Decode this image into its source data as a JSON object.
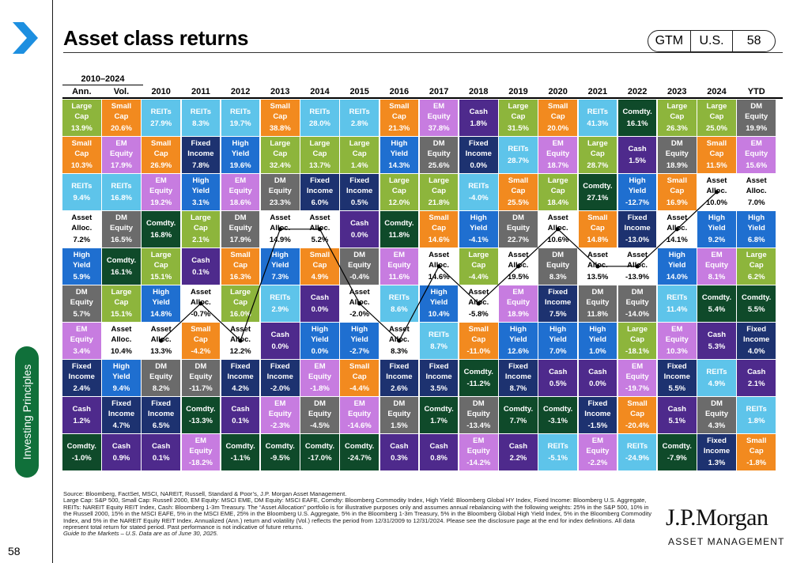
{
  "title": "Asset class returns",
  "badge": {
    "gtm": "GTM",
    "region": "U.S.",
    "page": "58"
  },
  "sidebar": {
    "label": "Investing Principles",
    "page_number": "58"
  },
  "colors": {
    "Large Cap": "#8db53c",
    "Small Cap": "#f28a1f",
    "EM Equity": "#c77ce0",
    "REITs": "#5ec4ea",
    "Asset Alloc.": "#ffffff",
    "High Yield": "#1f6fd0",
    "DM Equity": "#6b6b6b",
    "Fixed Income": "#1d3270",
    "Cash": "#4e2a8c",
    "Comdty.": "#0f4a2a"
  },
  "chart_data": {
    "type": "table",
    "title": "Asset class returns",
    "range_label": "2010–2024",
    "columns": [
      "Ann.",
      "Vol.",
      "2010",
      "2011",
      "2012",
      "2013",
      "2014",
      "2015",
      "2016",
      "2017",
      "2018",
      "2019",
      "2020",
      "2021",
      "2022",
      "2023",
      "2024",
      "YTD"
    ],
    "rows": [
      [
        [
          "Large Cap",
          "13.9%"
        ],
        [
          "Small Cap",
          "20.6%"
        ],
        [
          "REITs",
          "27.9%"
        ],
        [
          "REITs",
          "8.3%"
        ],
        [
          "REITs",
          "19.7%"
        ],
        [
          "Small Cap",
          "38.8%"
        ],
        [
          "REITs",
          "28.0%"
        ],
        [
          "REITs",
          "2.8%"
        ],
        [
          "Small Cap",
          "21.3%"
        ],
        [
          "EM Equity",
          "37.8%"
        ],
        [
          "Cash",
          "1.8%"
        ],
        [
          "Large Cap",
          "31.5%"
        ],
        [
          "Small Cap",
          "20.0%"
        ],
        [
          "REITs",
          "41.3%"
        ],
        [
          "Comdty.",
          "16.1%"
        ],
        [
          "Large Cap",
          "26.3%"
        ],
        [
          "Large Cap",
          "25.0%"
        ],
        [
          "DM Equity",
          "19.9%"
        ]
      ],
      [
        [
          "Small Cap",
          "10.3%"
        ],
        [
          "EM Equity",
          "17.9%"
        ],
        [
          "Small Cap",
          "26.9%"
        ],
        [
          "Fixed Income",
          "7.8%"
        ],
        [
          "High Yield",
          "19.6%"
        ],
        [
          "Large Cap",
          "32.4%"
        ],
        [
          "Large Cap",
          "13.7%"
        ],
        [
          "Large Cap",
          "1.4%"
        ],
        [
          "High Yield",
          "14.3%"
        ],
        [
          "DM Equity",
          "25.6%"
        ],
        [
          "Fixed Income",
          "0.0%"
        ],
        [
          "REITs",
          "28.7%"
        ],
        [
          "EM Equity",
          "18.7%"
        ],
        [
          "Large Cap",
          "28.7%"
        ],
        [
          "Cash",
          "1.5%"
        ],
        [
          "DM Equity",
          "18.9%"
        ],
        [
          "Small Cap",
          "11.5%"
        ],
        [
          "EM Equity",
          "15.6%"
        ]
      ],
      [
        [
          "REITs",
          "9.4%"
        ],
        [
          "REITs",
          "16.8%"
        ],
        [
          "EM Equity",
          "19.2%"
        ],
        [
          "High Yield",
          "3.1%"
        ],
        [
          "EM Equity",
          "18.6%"
        ],
        [
          "DM Equity",
          "23.3%"
        ],
        [
          "Fixed Income",
          "6.0%"
        ],
        [
          "Fixed Income",
          "0.5%"
        ],
        [
          "Large Cap",
          "12.0%"
        ],
        [
          "Large Cap",
          "21.8%"
        ],
        [
          "REITs",
          "-4.0%"
        ],
        [
          "Small Cap",
          "25.5%"
        ],
        [
          "Large Cap",
          "18.4%"
        ],
        [
          "Comdty.",
          "27.1%"
        ],
        [
          "High Yield",
          "-12.7%"
        ],
        [
          "Small Cap",
          "16.9%"
        ],
        [
          "Asset Alloc.",
          "10.0%"
        ],
        [
          "Asset Alloc.",
          "7.0%"
        ]
      ],
      [
        [
          "Asset Alloc.",
          "7.2%"
        ],
        [
          "DM Equity",
          "16.5%"
        ],
        [
          "Comdty.",
          "16.8%"
        ],
        [
          "Large Cap",
          "2.1%"
        ],
        [
          "DM Equity",
          "17.9%"
        ],
        [
          "Asset Alloc.",
          "14.9%"
        ],
        [
          "Asset Alloc.",
          "5.2%"
        ],
        [
          "Cash",
          "0.0%"
        ],
        [
          "Comdty.",
          "11.8%"
        ],
        [
          "Small Cap",
          "14.6%"
        ],
        [
          "High Yield",
          "-4.1%"
        ],
        [
          "DM Equity",
          "22.7%"
        ],
        [
          "Asset Alloc.",
          "10.6%"
        ],
        [
          "Small Cap",
          "14.8%"
        ],
        [
          "Fixed Income",
          "-13.0%"
        ],
        [
          "Asset Alloc.",
          "14.1%"
        ],
        [
          "High Yield",
          "9.2%"
        ],
        [
          "High Yield",
          "6.8%"
        ]
      ],
      [
        [
          "High Yield",
          "5.9%"
        ],
        [
          "Comdty.",
          "16.1%"
        ],
        [
          "Large Cap",
          "15.1%"
        ],
        [
          "Cash",
          "0.1%"
        ],
        [
          "Small Cap",
          "16.3%"
        ],
        [
          "High Yield",
          "7.3%"
        ],
        [
          "Small Cap",
          "4.9%"
        ],
        [
          "DM Equity",
          "-0.4%"
        ],
        [
          "EM Equity",
          "11.6%"
        ],
        [
          "Asset Alloc.",
          "14.6%"
        ],
        [
          "Large Cap",
          "-4.4%"
        ],
        [
          "Asset Alloc.",
          "19.5%"
        ],
        [
          "DM Equity",
          "8.3%"
        ],
        [
          "Asset Alloc.",
          "13.5%"
        ],
        [
          "Asset Alloc.",
          "-13.9%"
        ],
        [
          "High Yield",
          "14.0%"
        ],
        [
          "EM Equity",
          "8.1%"
        ],
        [
          "Large Cap",
          "6.2%"
        ]
      ],
      [
        [
          "DM Equity",
          "5.7%"
        ],
        [
          "Large Cap",
          "15.1%"
        ],
        [
          "High Yield",
          "14.8%"
        ],
        [
          "Asset Alloc.",
          "-0.7%"
        ],
        [
          "Large Cap",
          "16.0%"
        ],
        [
          "REITs",
          "2.9%"
        ],
        [
          "Cash",
          "0.0%"
        ],
        [
          "Asset Alloc.",
          "-2.0%"
        ],
        [
          "REITs",
          "8.6%"
        ],
        [
          "High Yield",
          "10.4%"
        ],
        [
          "Asset Alloc.",
          "-5.8%"
        ],
        [
          "EM Equity",
          "18.9%"
        ],
        [
          "Fixed Income",
          "7.5%"
        ],
        [
          "DM Equity",
          "11.8%"
        ],
        [
          "DM Equity",
          "-14.0%"
        ],
        [
          "REITs",
          "11.4%"
        ],
        [
          "Comdty.",
          "5.4%"
        ],
        [
          "Comdty.",
          "5.5%"
        ]
      ],
      [
        [
          "EM Equity",
          "3.4%"
        ],
        [
          "Asset Alloc.",
          "10.4%"
        ],
        [
          "Asset Alloc.",
          "13.3%"
        ],
        [
          "Small Cap",
          "-4.2%"
        ],
        [
          "Asset Alloc.",
          "12.2%"
        ],
        [
          "Cash",
          "0.0%"
        ],
        [
          "High Yield",
          "0.0%"
        ],
        [
          "High Yield",
          "-2.7%"
        ],
        [
          "Asset Alloc.",
          "8.3%"
        ],
        [
          "REITs",
          "8.7%"
        ],
        [
          "Small Cap",
          "-11.0%"
        ],
        [
          "High Yield",
          "12.6%"
        ],
        [
          "High Yield",
          "7.0%"
        ],
        [
          "High Yield",
          "1.0%"
        ],
        [
          "Large Cap",
          "-18.1%"
        ],
        [
          "EM Equity",
          "10.3%"
        ],
        [
          "Cash",
          "5.3%"
        ],
        [
          "Fixed Income",
          "4.0%"
        ]
      ],
      [
        [
          "Fixed Income",
          "2.4%"
        ],
        [
          "High Yield",
          "9.4%"
        ],
        [
          "DM Equity",
          "8.2%"
        ],
        [
          "DM Equity",
          "-11.7%"
        ],
        [
          "Fixed Income",
          "4.2%"
        ],
        [
          "Fixed Income",
          "-2.0%"
        ],
        [
          "EM Equity",
          "-1.8%"
        ],
        [
          "Small Cap",
          "-4.4%"
        ],
        [
          "Fixed Income",
          "2.6%"
        ],
        [
          "Fixed Income",
          "3.5%"
        ],
        [
          "Comdty.",
          "-11.2%"
        ],
        [
          "Fixed Income",
          "8.7%"
        ],
        [
          "Cash",
          "0.5%"
        ],
        [
          "Cash",
          "0.0%"
        ],
        [
          "EM Equity",
          "-19.7%"
        ],
        [
          "Fixed Income",
          "5.5%"
        ],
        [
          "REITs",
          "4.9%"
        ],
        [
          "Cash",
          "2.1%"
        ]
      ],
      [
        [
          "Cash",
          "1.2%"
        ],
        [
          "Fixed Income",
          "4.7%"
        ],
        [
          "Fixed Income",
          "6.5%"
        ],
        [
          "Comdty.",
          "-13.3%"
        ],
        [
          "Cash",
          "0.1%"
        ],
        [
          "EM Equity",
          "-2.3%"
        ],
        [
          "DM Equity",
          "-4.5%"
        ],
        [
          "EM Equity",
          "-14.6%"
        ],
        [
          "DM Equity",
          "1.5%"
        ],
        [
          "Comdty.",
          "1.7%"
        ],
        [
          "DM Equity",
          "-13.4%"
        ],
        [
          "Comdty.",
          "7.7%"
        ],
        [
          "Comdty.",
          "-3.1%"
        ],
        [
          "Fixed Income",
          "-1.5%"
        ],
        [
          "Small Cap",
          "-20.4%"
        ],
        [
          "Cash",
          "5.1%"
        ],
        [
          "DM Equity",
          "4.3%"
        ],
        [
          "REITs",
          "1.8%"
        ]
      ],
      [
        [
          "Comdty.",
          "-1.0%"
        ],
        [
          "Cash",
          "0.9%"
        ],
        [
          "Cash",
          "0.1%"
        ],
        [
          "EM Equity",
          "-18.2%"
        ],
        [
          "Comdty.",
          "-1.1%"
        ],
        [
          "Comdty.",
          "-9.5%"
        ],
        [
          "Comdty.",
          "-17.0%"
        ],
        [
          "Comdty.",
          "-24.7%"
        ],
        [
          "Cash",
          "0.3%"
        ],
        [
          "Cash",
          "0.8%"
        ],
        [
          "EM Equity",
          "-14.2%"
        ],
        [
          "Cash",
          "2.2%"
        ],
        [
          "REITs",
          "-5.1%"
        ],
        [
          "EM Equity",
          "-2.2%"
        ],
        [
          "REITs",
          "-24.9%"
        ],
        [
          "Comdty.",
          "-7.9%"
        ],
        [
          "Fixed Income",
          "1.3%"
        ],
        [
          "Small Cap",
          "-1.8%"
        ]
      ]
    ],
    "asset_alloc_line": {
      "years": [
        "2010",
        "2011",
        "2012",
        "2013",
        "2014",
        "2015",
        "2016",
        "2017",
        "2018",
        "2019",
        "2020",
        "2021",
        "2022",
        "2023",
        "2024"
      ],
      "returns": [
        13.3,
        -0.7,
        12.2,
        14.9,
        5.2,
        -2.0,
        8.3,
        14.6,
        -5.8,
        19.5,
        10.6,
        13.5,
        -13.9,
        14.1,
        10.0
      ]
    }
  },
  "footnote": {
    "source": "Source: Bloomberg, FactSet, MSCI, NAREIT, Russell, Standard & Poor’s, J.P. Morgan Asset Management.",
    "body": "Large Cap: S&P 500, Small Cap: Russell 2000, EM Equity: MSCI EME, DM Equity: MSCI EAFE, Comdty: Bloomberg Commodity Index, High Yield: Bloomberg Global HY Index, Fixed Income: Bloomberg U.S. Aggregate, REITs: NAREIT Equity REIT Index, Cash: Bloomberg 1-3m Treasury. The “Asset Allocation” portfolio is for illustrative purposes only and assumes annual rebalancing with the following weights: 25% in the S&P 500, 10% in the Russell 2000, 15% in the MSCI EAFE, 5% in the MSCI EME, 25% in the Bloomberg U.S. Aggregate, 5% in the Bloomberg 1-3m Treasury, 5% in the Bloomberg Global High Yield Index, 5% in the Bloomberg Commodity Index, and 5% in the NAREIT Equity REIT Index. Annualized (Ann.) return and volatility (Vol.) reflects the period from 12/31/2009 to 12/31/2024. Please see the disclosure page at the end for index definitions. All data represent total return for stated period. Past performance is not indicative of future returns.",
    "guide": "Guide to the Markets – U.S. Data are as of June 30, 2025."
  },
  "brand": {
    "name": "J.P.Morgan",
    "sub": "ASSET MANAGEMENT"
  }
}
